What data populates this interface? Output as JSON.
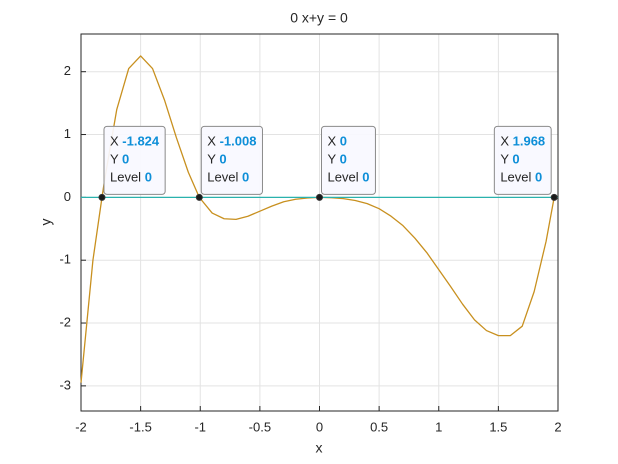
{
  "chart_data": {
    "type": "line",
    "title": "0 x+y = 0",
    "xlabel": "x",
    "ylabel": "y",
    "xlim": [
      -2,
      2
    ],
    "ylim": [
      -3.4,
      2.6
    ],
    "xticks": [
      -2,
      -1.5,
      -1,
      -0.5,
      0,
      0.5,
      1,
      1.5,
      2
    ],
    "yticks": [
      -3,
      -2,
      -1,
      0,
      1,
      2
    ],
    "grid": true,
    "series": [
      {
        "color": "#c8901f",
        "x": [
          -2,
          -1.9,
          -1.824,
          -1.8,
          -1.7,
          -1.6,
          -1.5,
          -1.4,
          -1.3,
          -1.2,
          -1.1,
          -1.008,
          -0.9,
          -0.8,
          -0.7,
          -0.6,
          -0.5,
          -0.4,
          -0.3,
          -0.2,
          -0.1,
          0,
          0.1,
          0.2,
          0.3,
          0.4,
          0.5,
          0.6,
          0.7,
          0.8,
          0.9,
          1.0,
          1.1,
          1.2,
          1.3,
          1.4,
          1.5,
          1.6,
          1.7,
          1.8,
          1.9,
          1.968,
          2
        ],
        "values": [
          -2.95,
          -1.0,
          0,
          0.3,
          1.4,
          2.05,
          2.25,
          2.05,
          1.55,
          0.95,
          0.4,
          0,
          -0.25,
          -0.34,
          -0.35,
          -0.3,
          -0.22,
          -0.14,
          -0.07,
          -0.03,
          -0.01,
          0,
          -0.005,
          -0.02,
          -0.05,
          -0.1,
          -0.18,
          -0.3,
          -0.45,
          -0.65,
          -0.88,
          -1.15,
          -1.42,
          -1.7,
          -1.95,
          -2.12,
          -2.2,
          -2.2,
          -2.05,
          -1.5,
          -0.7,
          0,
          0
        ]
      },
      {
        "color": "#2ab2ad",
        "x": [
          -2,
          2
        ],
        "values": [
          0,
          0
        ]
      }
    ],
    "datatip_labels": [
      "X",
      "Y",
      "Level"
    ],
    "datatips": [
      {
        "x": -1.824,
        "y": 0,
        "level": 0
      },
      {
        "x": -1.008,
        "y": 0,
        "level": 0
      },
      {
        "x": 0,
        "y": 0,
        "level": 0
      },
      {
        "x": 1.968,
        "y": 0,
        "level": 0
      }
    ]
  }
}
